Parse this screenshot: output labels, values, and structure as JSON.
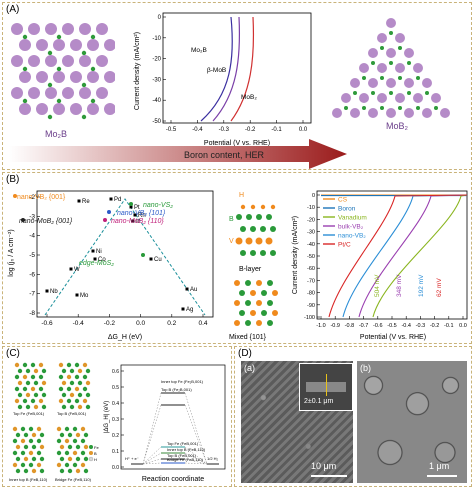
{
  "panelA": {
    "label": "(A)",
    "left_structure": "Mo$_2$B",
    "left_structure_text": "Mo₂B",
    "right_structure_text": "MoB₂",
    "arrow_text": "Boron content, HER",
    "chart": {
      "ylabel": "Current density (mA/cm²)",
      "xlabel": "Potential (V vs. RHE)",
      "xticks": [
        "-0.5",
        "-0.4",
        "-0.3",
        "-0.2",
        "-0.1",
        "0.0"
      ],
      "yticks": [
        "0",
        "-10",
        "-20",
        "-30",
        "-40",
        "-50"
      ],
      "curve_labels": [
        "Mo₂B",
        "β-MoB",
        "MoB₂"
      ]
    },
    "colors": {
      "mo": "#b58bc8",
      "b": "#2f9a3a",
      "arrow": "#9b1b1b"
    }
  },
  "panelB": {
    "label": "(B)",
    "volcano": {
      "ylabel": "log (j₀ / A cm⁻²)",
      "xlabel": "ΔG_H (eV)",
      "xticks": [
        "-0.6",
        "-0.4",
        "-0.2",
        "0.0",
        "0.2",
        "0.4"
      ],
      "yticks": [
        "-2",
        "-3",
        "-4",
        "-5",
        "-6",
        "-7",
        "-8"
      ],
      "points": [
        {
          "label": "Pd"
        },
        {
          "label": "Re"
        },
        {
          "label": "Pt"
        },
        {
          "label": "Rh"
        },
        {
          "label": "Ir"
        },
        {
          "label": "Ni"
        },
        {
          "label": "Co"
        },
        {
          "label": "W"
        },
        {
          "label": "Nb"
        },
        {
          "label": "Mo"
        },
        {
          "label": "Cu"
        },
        {
          "label": "Au"
        },
        {
          "label": "Ag"
        }
      ],
      "annotations": [
        "nano-VB₂ {001}",
        "nano-MoB₂ {001}",
        "nano-VS₂",
        "nano-VB₂ {101}",
        "nano-MoB₂ {110}",
        "edge-MoS₂"
      ]
    },
    "structure_labels": [
      "H",
      "B",
      "V",
      "B-layer",
      "Mixed {101}"
    ],
    "lsv": {
      "ylabel": "Current density (mA/cm²)",
      "xlabel": "Potential (V vs. RHE)",
      "xticks": [
        "-1.0",
        "-0.9",
        "-0.8",
        "-0.7",
        "-0.6",
        "-0.5",
        "-0.4",
        "-0.3",
        "-0.2",
        "-0.1",
        "0.0"
      ],
      "yticks": [
        "0",
        "-10",
        "-20",
        "-30",
        "-40",
        "-50",
        "-60",
        "-70",
        "-80",
        "-90",
        "-100"
      ],
      "legend": [
        {
          "name": "CS",
          "color": "#f08a1d"
        },
        {
          "name": "Boron",
          "color": "#1d74b8"
        },
        {
          "name": "Vanadium",
          "color": "#8ab51f"
        },
        {
          "name": "bulk-VB₂",
          "color": "#9a3fb0"
        },
        {
          "name": "nano-VB₂",
          "color": "#2b8ed6"
        },
        {
          "name": "Pt/C",
          "color": "#d92626"
        }
      ],
      "overpotentials": [
        "504 mV",
        "348 mV",
        "192 mV",
        "62 mV"
      ]
    }
  },
  "panelC": {
    "label": "(C)",
    "structure_captions": [
      "Top Fe (FeB,001)",
      "Top B (FeB,001)",
      "Inner top B (FeB,110)",
      "Bridge Fe (FeB,110)"
    ],
    "legend": [
      "Fe",
      "B",
      "H"
    ],
    "chart": {
      "ylabel": "|ΔG_H| (eV)",
      "xlabel": "Reaction coordinate",
      "yticks": [
        "0.0",
        "0.1",
        "0.2",
        "0.3",
        "0.4",
        "0.5",
        "0.6"
      ],
      "level_labels": [
        "Top B (Fe₂B,001)",
        "Inner top Fe (Fe₂B,001)",
        "Top Fe (FeB,001)",
        "Inner top B (FeB,110)",
        "Top B (FeB,001)",
        "Bridge Fe (FeB,110)"
      ],
      "left_labels": [
        "H⁺ + e⁻",
        "1/2 H₂"
      ]
    }
  },
  "panelD": {
    "label": "(D)",
    "sub_a": "(a)",
    "sub_b": "(b)",
    "inset_text": "2±0.1 μm",
    "scale_a": "10 μm",
    "scale_b": "1 μm"
  }
}
